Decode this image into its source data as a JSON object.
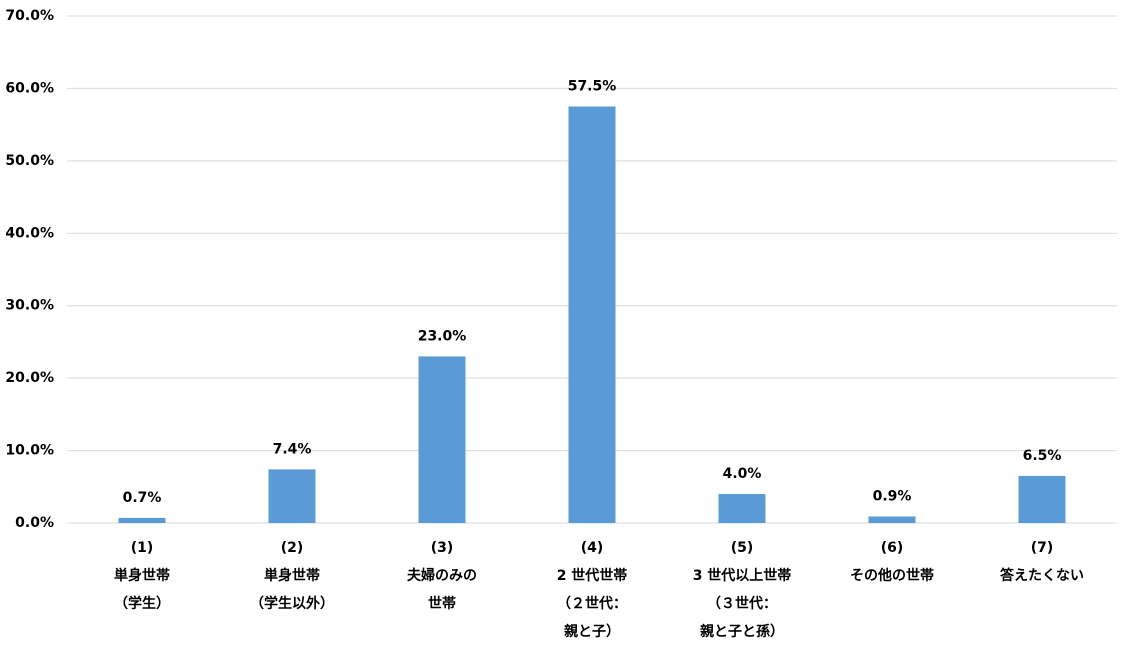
{
  "chart_data": {
    "type": "bar",
    "categories": [
      [
        "(1)",
        "単身世帯",
        "（学生）"
      ],
      [
        "(2)",
        "単身世帯",
        "（学生以外）"
      ],
      [
        "(3)",
        "夫婦のみの",
        "世帯"
      ],
      [
        "(4)",
        "2 世代世帯",
        "（２世代：",
        "親と子）"
      ],
      [
        "(5)",
        "3 世代以上世帯",
        "（３世代：",
        "親と子と孫）"
      ],
      [
        "(6)",
        "その他の世帯"
      ],
      [
        "(7)",
        "答えたくない"
      ]
    ],
    "values": [
      0.7,
      7.4,
      23.0,
      57.5,
      4.0,
      0.9,
      6.5
    ],
    "value_labels": [
      "0.7%",
      "7.4%",
      "23.0%",
      "57.5%",
      "4.0%",
      "0.9%",
      "6.5%"
    ],
    "color": "#5b9bd5",
    "ylim": [
      0,
      70
    ],
    "yticks": [
      {
        "value": 0,
        "label": "0.0%"
      },
      {
        "value": 10,
        "label": "10.0%"
      },
      {
        "value": 20,
        "label": "20.0%"
      },
      {
        "value": 30,
        "label": "30.0%"
      },
      {
        "value": 40,
        "label": "40.0%"
      },
      {
        "value": 50,
        "label": "50.0%"
      },
      {
        "value": 60,
        "label": "60.0%"
      },
      {
        "value": 70,
        "label": "70.0%"
      }
    ],
    "grid": true
  }
}
